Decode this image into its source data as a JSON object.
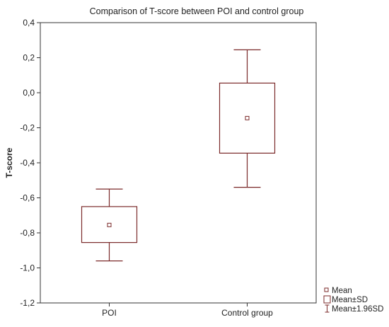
{
  "chart_data": {
    "type": "box",
    "title": "Comparison of T-score between POI and control group",
    "xlabel": "",
    "ylabel": "T-score",
    "ylim": [
      -1.2,
      0.4
    ],
    "yticks": [
      0.4,
      0.2,
      0.0,
      -0.2,
      -0.4,
      -0.6,
      -0.8,
      -1.0,
      -1.2
    ],
    "ytick_labels": [
      "0,4",
      "0,2",
      "0,0",
      "-0,2",
      "-0,4",
      "-0,6",
      "-0,8",
      "-1,0",
      "-1,2"
    ],
    "categories": [
      "POI",
      "Control group"
    ],
    "groups": [
      {
        "category": "POI",
        "mean": -0.755,
        "sd_low": -0.855,
        "sd_high": -0.65,
        "ci_low": -0.96,
        "ci_high": -0.55
      },
      {
        "category": "Control group",
        "mean": -0.145,
        "sd_low": -0.345,
        "sd_high": 0.055,
        "ci_low": -0.54,
        "ci_high": 0.245
      }
    ],
    "legend": {
      "position": "bottom-right",
      "entries": [
        "Mean",
        "Mean±SD",
        "Mean±1.96SD"
      ]
    },
    "grid": false,
    "color": "#7b2a2a"
  }
}
